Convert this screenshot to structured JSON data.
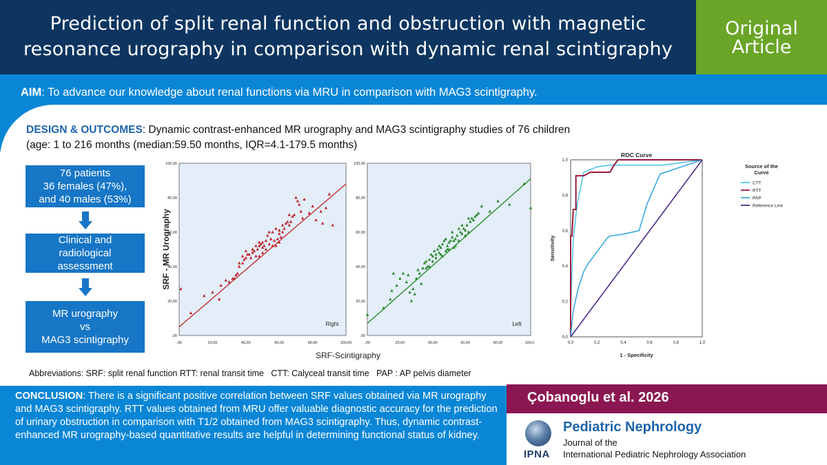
{
  "header": {
    "title_line1": "Prediction of split renal function and obstruction with magnetic",
    "title_line2": "resonance  urography in comparison with dynamic renal scintigraphy",
    "badge_line1": "Original",
    "badge_line2": "Article"
  },
  "aim": {
    "label": "AIM",
    "text": ": To advance our knowledge about renal functions via MRU in comparison with MAG3 scintigraphy."
  },
  "design": {
    "label": "DESIGN & OUTCOMES",
    "text_line1": ": Dynamic contrast-enhanced MR urography and MAG3 scintigraphy  studies of 76 children",
    "text_line2": "(age: 1 to 216 months (median:59.50 months, IQR=4.1-179.5 months)"
  },
  "flow": {
    "box1": [
      "76 patients",
      "36 females (47%),",
      "and 40 males (53%)"
    ],
    "box2": [
      "Clinical and",
      "radiological",
      "assessment"
    ],
    "box3": [
      "MR urography",
      "vs",
      "MAG3 scintigraphy"
    ]
  },
  "colors": {
    "header_bg": "#0d3560",
    "badge_bg": "#6aa527",
    "band_bg": "#0a86d6",
    "flow_box": "#1776c6",
    "author_bar": "#8b1752",
    "right_series": "#c0282e",
    "left_series": "#2a8a2a",
    "ctt": "#56c4e6",
    "rtt": "#9b1b3a",
    "pap": "#3aa8e0",
    "reference": "#4b2a88"
  },
  "chart_data": [
    {
      "type": "scatter",
      "title": "",
      "panel_label": "Right",
      "xlabel": "SRF-Scintigraphy",
      "ylabel": "SRF - MR Urography",
      "xlim": [
        0,
        100
      ],
      "ylim": [
        0,
        100
      ],
      "x_ticks": [
        ",00",
        "20,00",
        "40,00",
        "60,00",
        "80,00",
        "100,00"
      ],
      "y_ticks": [
        ",00",
        "20,00",
        "40,00",
        "60,00",
        "80,00",
        "100,00"
      ],
      "fit_line": {
        "x": [
          0,
          100
        ],
        "y": [
          5,
          88
        ]
      },
      "points": [
        [
          1,
          27
        ],
        [
          7,
          13
        ],
        [
          15,
          23
        ],
        [
          20,
          25
        ],
        [
          24,
          21
        ],
        [
          25,
          29
        ],
        [
          30,
          31
        ],
        [
          32,
          33
        ],
        [
          33,
          33
        ],
        [
          34,
          35
        ],
        [
          35,
          36
        ],
        [
          36,
          40
        ],
        [
          38,
          42
        ],
        [
          39,
          44
        ],
        [
          40,
          45
        ],
        [
          41,
          47
        ],
        [
          42,
          47
        ],
        [
          43,
          45
        ],
        [
          44,
          48
        ],
        [
          45,
          49
        ],
        [
          46,
          46
        ],
        [
          47,
          50
        ],
        [
          48,
          52
        ],
        [
          49,
          53
        ],
        [
          50,
          54
        ],
        [
          50,
          51
        ],
        [
          51,
          52
        ],
        [
          52,
          55
        ],
        [
          53,
          58
        ],
        [
          54,
          53
        ],
        [
          55,
          56
        ],
        [
          56,
          60
        ],
        [
          57,
          55
        ],
        [
          58,
          52
        ],
        [
          59,
          56
        ],
        [
          60,
          59
        ],
        [
          60,
          61
        ],
        [
          61,
          57
        ],
        [
          62,
          60
        ],
        [
          63,
          62
        ],
        [
          64,
          65
        ],
        [
          65,
          66
        ],
        [
          66,
          64
        ],
        [
          67,
          66
        ],
        [
          68,
          69
        ],
        [
          69,
          70
        ],
        [
          70,
          80
        ],
        [
          71,
          78
        ],
        [
          72,
          76
        ],
        [
          73,
          72
        ],
        [
          74,
          68
        ],
        [
          75,
          79
        ],
        [
          78,
          71
        ],
        [
          80,
          75
        ],
        [
          82,
          67
        ],
        [
          85,
          72
        ],
        [
          86,
          65
        ],
        [
          88,
          74
        ],
        [
          90,
          82
        ],
        [
          92,
          64
        ],
        [
          44,
          50
        ],
        [
          48,
          54
        ],
        [
          52,
          50
        ],
        [
          46,
          52
        ],
        [
          56,
          52
        ],
        [
          58,
          62
        ],
        [
          62,
          64
        ],
        [
          40,
          49
        ],
        [
          38,
          46
        ],
        [
          36,
          42
        ],
        [
          28,
          32
        ],
        [
          54,
          60
        ],
        [
          50,
          48
        ],
        [
          60,
          54
        ],
        [
          66,
          70
        ],
        [
          48,
          46
        ]
      ]
    },
    {
      "type": "scatter",
      "title": "",
      "panel_label": "Left",
      "xlabel": "SRF-Scintigraphy",
      "ylabel": "",
      "xlim": [
        0,
        100
      ],
      "ylim": [
        0,
        100
      ],
      "x_ticks": [
        ",00",
        "20,00",
        "40,00",
        "60,00",
        "80,00",
        "100,00"
      ],
      "y_ticks": [
        ",00",
        "20,00",
        "40,00",
        "60,00",
        "80,00",
        "100,00"
      ],
      "fit_line": {
        "x": [
          0,
          100
        ],
        "y": [
          7,
          91
        ]
      },
      "points": [
        [
          0,
          12
        ],
        [
          10,
          16
        ],
        [
          14,
          21
        ],
        [
          15,
          26
        ],
        [
          16,
          36
        ],
        [
          18,
          29
        ],
        [
          20,
          33
        ],
        [
          22,
          36
        ],
        [
          24,
          31
        ],
        [
          25,
          35
        ],
        [
          26,
          25
        ],
        [
          27,
          20
        ],
        [
          28,
          27
        ],
        [
          30,
          33
        ],
        [
          31,
          38
        ],
        [
          32,
          36
        ],
        [
          34,
          39
        ],
        [
          35,
          42
        ],
        [
          36,
          43
        ],
        [
          37,
          40
        ],
        [
          38,
          44
        ],
        [
          39,
          47
        ],
        [
          40,
          46
        ],
        [
          41,
          49
        ],
        [
          42,
          45
        ],
        [
          43,
          50
        ],
        [
          44,
          48
        ],
        [
          45,
          51
        ],
        [
          46,
          53
        ],
        [
          47,
          55
        ],
        [
          48,
          49
        ],
        [
          49,
          52
        ],
        [
          50,
          54
        ],
        [
          51,
          55
        ],
        [
          52,
          57
        ],
        [
          53,
          51
        ],
        [
          54,
          56
        ],
        [
          55,
          58
        ],
        [
          56,
          55
        ],
        [
          57,
          60
        ],
        [
          58,
          59
        ],
        [
          59,
          62
        ],
        [
          60,
          61
        ],
        [
          61,
          64
        ],
        [
          62,
          60
        ],
        [
          63,
          66
        ],
        [
          64,
          68
        ],
        [
          65,
          67
        ],
        [
          66,
          69
        ],
        [
          67,
          70
        ],
        [
          68,
          71
        ],
        [
          70,
          75
        ],
        [
          75,
          72
        ],
        [
          80,
          78
        ],
        [
          87,
          76
        ],
        [
          96,
          88
        ],
        [
          100,
          74
        ],
        [
          44,
          52
        ],
        [
          48,
          56
        ],
        [
          42,
          47
        ],
        [
          50,
          50
        ],
        [
          52,
          60
        ],
        [
          46,
          46
        ],
        [
          38,
          40
        ],
        [
          56,
          62
        ],
        [
          58,
          64
        ],
        [
          54,
          52
        ],
        [
          62,
          68
        ],
        [
          40,
          43
        ],
        [
          36,
          39
        ],
        [
          33,
          30
        ],
        [
          29,
          24
        ],
        [
          45,
          47
        ],
        [
          49,
          50
        ],
        [
          53,
          55
        ],
        [
          60,
          58
        ]
      ]
    },
    {
      "type": "line",
      "title": "ROC Curve",
      "xlabel": "1 - Specificity",
      "ylabel": "Sensitivity",
      "xlim": [
        0,
        1
      ],
      "ylim": [
        0,
        1
      ],
      "x_ticks": [
        "0,0",
        "0,2",
        "0,4",
        "0,6",
        "0,8",
        "1,0"
      ],
      "y_ticks": [
        "0,0",
        "0,2",
        "0,4",
        "0,6",
        "0,8",
        "1,0"
      ],
      "legend_title": "Source of the Curve",
      "legend_position": "right",
      "series": [
        {
          "name": "CTT",
          "x": [
            0,
            0,
            0.02,
            0.05,
            0.08,
            0.1,
            0.2,
            0.3,
            0.5,
            0.7,
            1.0
          ],
          "y": [
            0,
            0.15,
            0.55,
            0.75,
            0.86,
            0.93,
            0.96,
            0.97,
            0.97,
            0.97,
            1.0
          ]
        },
        {
          "name": "RTT",
          "x": [
            0,
            0,
            0.01,
            0.02,
            0.02,
            0.04,
            0.04,
            0.06,
            0.1,
            0.15,
            0.2,
            0.3,
            0.33,
            0.36,
            0.6,
            0.8,
            1.0
          ],
          "y": [
            0,
            0.57,
            0.57,
            0.72,
            0.72,
            0.72,
            0.91,
            0.91,
            0.91,
            0.93,
            0.93,
            0.93,
            0.97,
            1.0,
            1.0,
            1.0,
            1.0
          ]
        },
        {
          "name": "PAP",
          "x": [
            0,
            0.02,
            0.06,
            0.1,
            0.13,
            0.2,
            0.28,
            0.3,
            0.4,
            0.52,
            0.58,
            0.68,
            1.0
          ],
          "y": [
            0,
            0.15,
            0.28,
            0.37,
            0.41,
            0.48,
            0.56,
            0.57,
            0.58,
            0.6,
            0.75,
            0.92,
            1.0
          ]
        },
        {
          "name": "Reference Line",
          "x": [
            0,
            1
          ],
          "y": [
            0,
            1
          ]
        }
      ]
    }
  ],
  "abbreviations": "Abbreviations: SRF: split renal function RTT: renal transit time   CTT: Calyceal transit time   PAP : AP pelvis diameter",
  "conclusion": {
    "label": "CONCLUSION",
    "text": ": There is a significant positive correlation between SRF values obtained via MR urography and MAG3 scintigraphy.  RTT values obtained from MRU offer valuable diagnostic accuracy for the prediction of urinary obstruction in comparison with T1/2 obtained from MAG3 scintigraphy. Thus, dynamic contrast-enhanced MR urography-based quantitative results are helpful in determining functional status of kidney."
  },
  "author": "Çobanoglu  et al. 2026",
  "journal": {
    "name": "Pediatric Nephrology",
    "line1": "Journal of the",
    "line2": "International Pediatric Nephrology Association",
    "logo_text": "IPNA"
  }
}
